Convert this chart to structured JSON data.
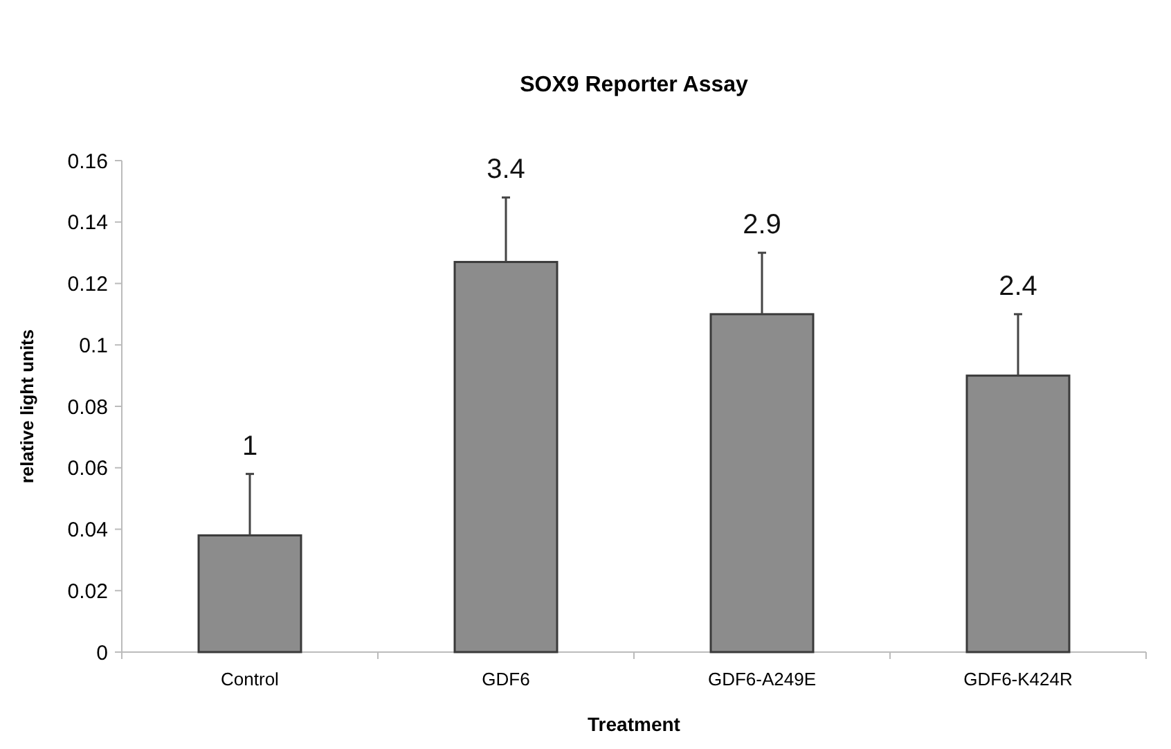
{
  "chart_data": {
    "type": "bar",
    "title": "SOX9 Reporter Assay",
    "xlabel": "Treatment",
    "ylabel": "relative light units",
    "categories": [
      "Control",
      "GDF6",
      "GDF6-A249E",
      "GDF6-K424R"
    ],
    "values": [
      0.038,
      0.127,
      0.11,
      0.09
    ],
    "errors": [
      [
        0.038,
        0.058
      ],
      [
        0.127,
        0.148
      ],
      [
        0.11,
        0.13
      ],
      [
        0.09,
        0.11
      ]
    ],
    "annotations": [
      {
        "text": "1",
        "x": "Control",
        "y": 0.058
      },
      {
        "text": "3.4",
        "x": "GDF6",
        "y": 0.148
      },
      {
        "text": "2.9",
        "x": "GDF6-A249E",
        "y": 0.13
      },
      {
        "text": "2.4",
        "x": "GDF6-K424R",
        "y": 0.11
      }
    ],
    "color": "#8c8c8c",
    "ylim": [
      0,
      0.16
    ],
    "yticks": [
      0,
      0.02,
      0.04,
      0.06,
      0.08,
      0.1,
      0.12,
      0.14,
      0.16
    ],
    "grid": false
  }
}
